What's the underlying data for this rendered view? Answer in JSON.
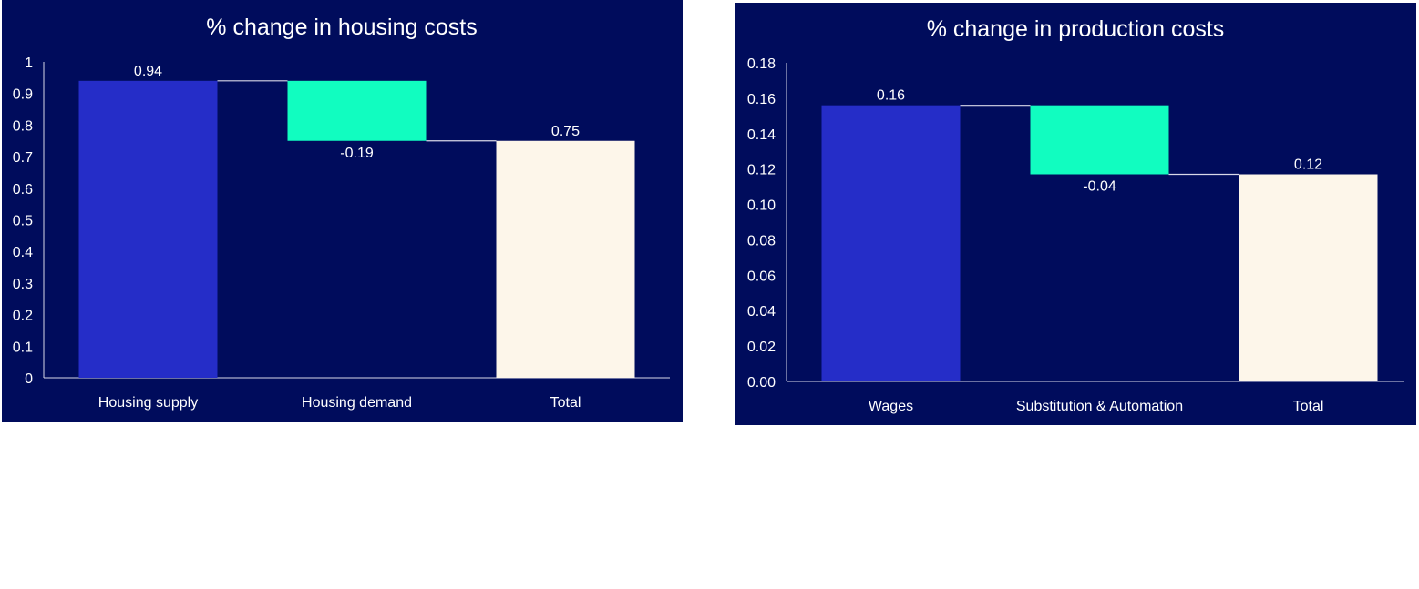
{
  "chart_data": [
    {
      "type": "waterfall",
      "title": "% change in housing costs",
      "categories": [
        "Housing supply",
        "Housing demand",
        "Total"
      ],
      "values": [
        0.94,
        -0.19,
        0.75
      ],
      "data_labels": [
        "0.94",
        "-0.19",
        "0.75"
      ],
      "ylim": [
        0,
        1
      ],
      "yticks": [
        "0",
        "0.1",
        "0.2",
        "0.3",
        "0.4",
        "0.5",
        "0.6",
        "0.7",
        "0.8",
        "0.9",
        "1"
      ],
      "grid": false,
      "colors": {
        "background": "#000c5c",
        "increase": "#252dc8",
        "decrease": "#11fdc0",
        "total": "#fdf6ea",
        "connector": "#d8d8e8"
      }
    },
    {
      "type": "waterfall",
      "title": "% change in production costs",
      "categories": [
        "Wages",
        "Substitution & Automation",
        "Total"
      ],
      "values": [
        0.156,
        -0.039,
        0.117
      ],
      "data_labels": [
        "0.16",
        "-0.04",
        "0.12"
      ],
      "ylim": [
        0,
        0.18
      ],
      "yticks": [
        "0.00",
        "0.02",
        "0.04",
        "0.06",
        "0.08",
        "0.10",
        "0.12",
        "0.14",
        "0.16",
        "0.18"
      ],
      "grid": false,
      "colors": {
        "background": "#000c5c",
        "increase": "#252dc8",
        "decrease": "#11fdc0",
        "total": "#fdf6ea",
        "connector": "#d8d8e8"
      }
    }
  ]
}
